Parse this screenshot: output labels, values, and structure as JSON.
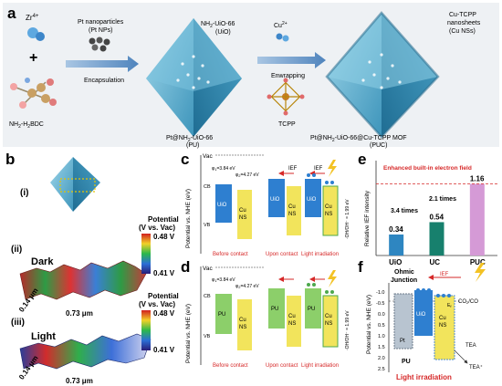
{
  "panel_letters": {
    "a": "a",
    "b": "b",
    "c": "c",
    "d": "d",
    "e": "e",
    "f": "f"
  },
  "colors": {
    "octahedron": "#5fb6d6",
    "octa_dark": "#2f7fa3",
    "uio_blue": "#2e7fd0",
    "cu_yellow": "#f2e45c",
    "pu_green": "#8ccf6a",
    "bar_uio": "#2e86c1",
    "bar_uc": "#17806d",
    "bar_puc": "#d59ad6",
    "red": "#d62828",
    "arrow": "#5e8fbf"
  },
  "panel_a": {
    "zr": "Zr",
    "zr_sup": "4+",
    "plus": "+",
    "linker": "NH",
    "linker_sub": "2",
    "linker_rest": "-H",
    "linker_sub2": "2",
    "linker_end": "BDC",
    "pt_np_line1": "Pt nanoparticles",
    "pt_np_line2": "(Pt NPs)",
    "step1": "Encapsulation",
    "uio_label1": "NH",
    "uio_label1_sub": "2",
    "uio_label1_rest": "-UiO-66",
    "uio_label2": "(UiO)",
    "pu_label1": "Pt@NH",
    "pu_label1_sub": "2",
    "pu_label1_rest": "-UiO-66",
    "pu_label2": "(PU)",
    "cu_ion": "Cu",
    "cu_ion_sup": "2+",
    "step2": "Enwrapping",
    "tcpp": "TCPP",
    "ns_line1": "Cu-TCPP",
    "ns_line2": "nanosheets",
    "ns_line3": "(Cu NSs)",
    "puc_line1_a": "Pt@NH",
    "puc_line1_sub": "2",
    "puc_line1_b": "-UiO-66@Cu-TCPP MOF",
    "puc_line2": "(PUC)"
  },
  "panel_b": {
    "sub_i": "(i)",
    "sub_ii": "(ii)",
    "sub_iii": "(iii)",
    "dark": "Dark",
    "light": "Light",
    "pot_title1": "Potential",
    "pot_title2": "(V vs. Vac)",
    "scale_top": "0.48 V",
    "scale_bottom": "0.41 V",
    "dim_y": "0.14 μm",
    "dim_x": "0.73 μm"
  },
  "panel_c": {
    "ylabel": "Potential vs. NHE (eV)",
    "vac": "Vac",
    "phi1": "φ",
    "phi1_sub": "1",
    "phi1_val": "=3.84 eV",
    "phi2": "φ",
    "phi2_sub": "2",
    "phi2_val": "=4.27 eV",
    "cb": "CB",
    "vb": "VB",
    "ef": "E",
    "ef_sub": "f",
    "uio": "UiO",
    "cu": "Cu",
    "ns": "NS",
    "ief": "IEF",
    "redox": "·OH/OH⁻ = 1.99 eV",
    "cond1": "Before contact",
    "cond2": "Upon contact",
    "cond3": "Light irradiation"
  },
  "panel_d": {
    "ylabel": "Potential vs. NHE (eV)",
    "vac": "Vac",
    "phi1": "φ",
    "phi1_sub": "1",
    "phi1_val": "=3.84 eV",
    "phi2": "φ",
    "phi2_sub": "2",
    "phi2_val": "=4.27 eV",
    "cb": "CB",
    "vb": "VB",
    "pu": "PU",
    "cu": "Cu",
    "ns": "NS",
    "redox": "·OH/OH⁻ = 1.99 eV",
    "cond1": "Before contact",
    "cond2": "Upon contact",
    "cond3": "Light irradiation"
  },
  "panel_e": {
    "title": "Enhanced built-in electron field",
    "ylabel": "Relative IEF intensity",
    "ratio1": "3.4 times",
    "ratio2": "2.1 times"
  },
  "chart_data": {
    "type": "bar",
    "categories": [
      "UiO",
      "UC",
      "PUC"
    ],
    "values": [
      0.34,
      0.54,
      1.16
    ],
    "value_labels": [
      "0.34",
      "0.54",
      "1.16"
    ],
    "title": "Enhanced built-in electron field",
    "xlabel": "",
    "ylabel": "Relative IEF intensity",
    "ylim": [
      0,
      1.3
    ],
    "yticks": []
  },
  "panel_f": {
    "ylabel": "Potential vs. NHE (eV)",
    "t1": "-1.0",
    "t2": "-0.5",
    "t3": "0.0",
    "t4": "0.5",
    "t5": "1.0",
    "t6": "1.5",
    "t7": "2.0",
    "t8": "2.5",
    "ohmic1": "Ohmic",
    "ohmic2": "Junction",
    "ief": "IEF",
    "uio": "UiO",
    "cu": "Cu",
    "ns": "NS",
    "ef": "E",
    "ef_sub": "f",
    "pt": "Pt",
    "pu": "PU",
    "co2": "CO",
    "co2_sub": "2",
    "co": "/CO",
    "tea": "TEA",
    "tea_plus": "TEA⁺",
    "bottom": "Light irradiation"
  }
}
